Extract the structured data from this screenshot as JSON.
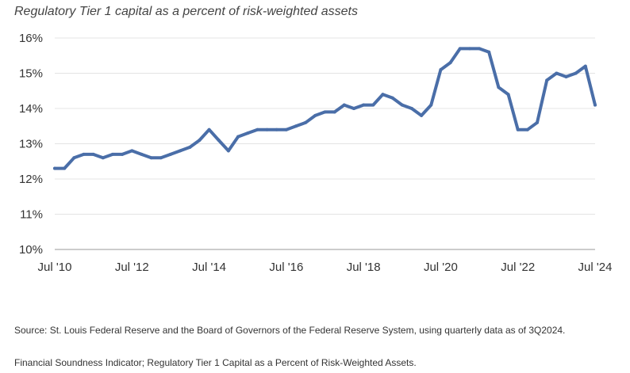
{
  "chart_data": {
    "type": "line",
    "title": "Regulatory Tier 1 capital as a percent of risk-weighted assets",
    "xlabel": "",
    "ylabel": "",
    "x_tick_labels": [
      "Jul '10",
      "Jul '12",
      "Jul '14",
      "Jul '16",
      "Jul '18",
      "Jul '20",
      "Jul '22",
      "Jul '24"
    ],
    "y_tick_labels": [
      "10%",
      "11%",
      "12%",
      "13%",
      "14%",
      "15%",
      "16%"
    ],
    "ylim": [
      10,
      16
    ],
    "xlim": [
      "2010-07",
      "2024-07"
    ],
    "grid": "horizontal",
    "legend": "none",
    "colors": {
      "line": "#4a6ea8"
    },
    "series": [
      {
        "x": [
          "2010-07",
          "2010-10",
          "2011-01",
          "2011-04",
          "2011-07",
          "2011-10",
          "2012-01",
          "2012-04",
          "2012-07",
          "2012-10",
          "2013-01",
          "2013-04",
          "2013-07",
          "2013-10",
          "2014-01",
          "2014-04",
          "2014-07",
          "2014-10",
          "2015-01",
          "2015-04",
          "2015-07",
          "2015-10",
          "2016-01",
          "2016-04",
          "2016-07",
          "2016-10",
          "2017-01",
          "2017-04",
          "2017-07",
          "2017-10",
          "2018-01",
          "2018-04",
          "2018-07",
          "2018-10",
          "2019-01",
          "2019-04",
          "2019-07",
          "2019-10",
          "2020-01",
          "2020-04",
          "2020-07",
          "2020-10",
          "2021-01",
          "2021-04",
          "2021-07",
          "2021-10",
          "2022-01",
          "2022-04",
          "2022-07",
          "2022-10",
          "2023-01",
          "2023-04",
          "2023-07",
          "2023-10",
          "2024-01",
          "2024-04",
          "2024-07"
        ],
        "values": [
          12.3,
          12.3,
          12.6,
          12.7,
          12.7,
          12.6,
          12.7,
          12.7,
          12.8,
          12.7,
          12.6,
          12.6,
          12.7,
          12.8,
          12.9,
          13.1,
          13.4,
          13.1,
          12.8,
          13.2,
          13.3,
          13.4,
          13.4,
          13.4,
          13.4,
          13.5,
          13.6,
          13.8,
          13.9,
          13.9,
          14.1,
          14.0,
          14.1,
          14.1,
          14.4,
          14.3,
          14.1,
          14.0,
          13.8,
          14.1,
          15.1,
          15.3,
          15.7,
          15.7,
          15.7,
          15.6,
          14.6,
          14.4,
          13.4,
          13.4,
          13.6,
          14.8,
          15.0,
          14.9,
          15.0,
          15.2,
          14.1
        ]
      }
    ]
  },
  "footer": {
    "source": "Source: St. Louis Federal Reserve and the Board of Governors of the Federal Reserve System, using quarterly data as of 3Q2024.",
    "note": "Financial Soundness Indicator; Regulatory Tier 1 Capital as a Percent of Risk-Weighted Assets."
  }
}
